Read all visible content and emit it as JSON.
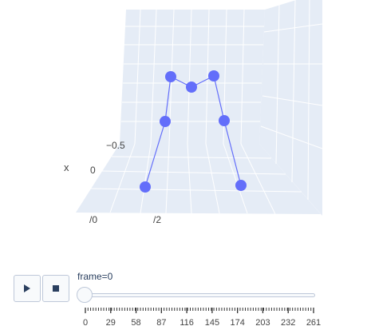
{
  "scene": {
    "axis_labels": {
      "x": "x"
    },
    "tick_labels": {
      "left_a": "−0.5",
      "left_b": "0",
      "bottom_a": "/0",
      "bottom_b": "/2"
    },
    "colors": {
      "background": "#e5ecf6",
      "grid": "#ffffff",
      "marker": "#636efa",
      "line": "#636efa"
    }
  },
  "controls": {
    "play_icon": "play-icon",
    "stop_icon": "stop-icon",
    "frame_label": "frame=0",
    "frame_current": 0,
    "frame_max": 261
  },
  "slider": {
    "tick_labels": [
      "0",
      "29",
      "58",
      "87",
      "116",
      "145",
      "174",
      "203",
      "232",
      "261"
    ]
  }
}
